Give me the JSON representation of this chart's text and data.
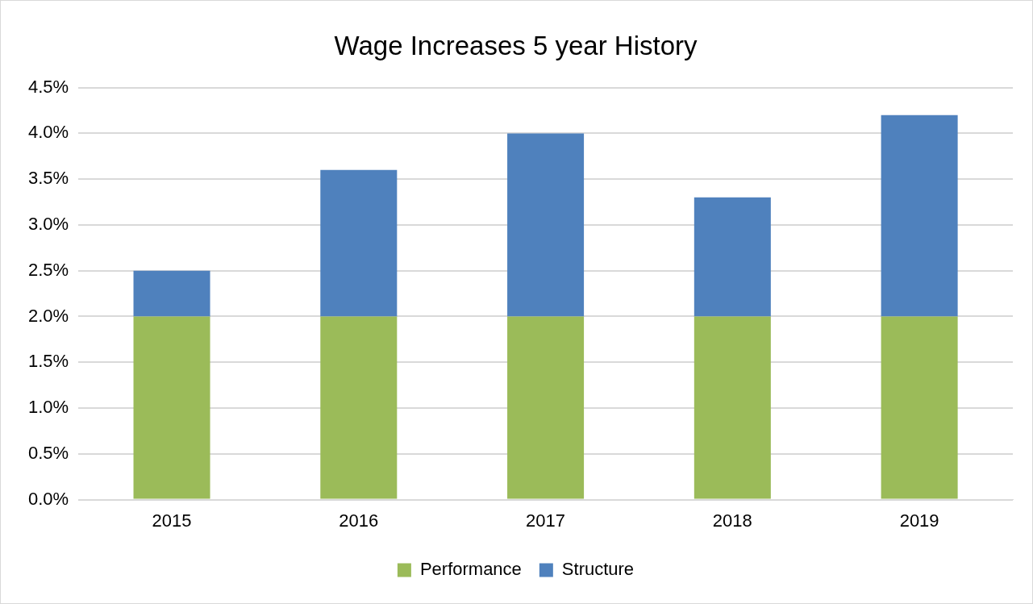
{
  "chart_data": {
    "type": "bar",
    "title": "Wage Increases 5 year History",
    "categories": [
      "2015",
      "2016",
      "2017",
      "2018",
      "2019"
    ],
    "series": [
      {
        "name": "Performance",
        "color": "#9bbb59",
        "values": [
          2.0,
          2.0,
          2.0,
          2.0,
          2.0
        ]
      },
      {
        "name": "Structure",
        "color": "#4f81bd",
        "values": [
          0.5,
          1.6,
          2.0,
          1.3,
          2.2
        ]
      }
    ],
    "stacked": true,
    "ylim": [
      0,
      4.5
    ],
    "yticks": [
      {
        "value": 0,
        "label": "0.0%"
      },
      {
        "value": 0.5,
        "label": "0.5%"
      },
      {
        "value": 1,
        "label": "1.0%"
      },
      {
        "value": 1.5,
        "label": "1.5%"
      },
      {
        "value": 2,
        "label": "2.0%"
      },
      {
        "value": 2.5,
        "label": "2.5%"
      },
      {
        "value": 3,
        "label": "3.0%"
      },
      {
        "value": 3.5,
        "label": "3.5%"
      },
      {
        "value": 4,
        "label": "4.0%"
      },
      {
        "value": 4.5,
        "label": "4.5%"
      }
    ],
    "grid": "y",
    "legend": "bottom"
  }
}
